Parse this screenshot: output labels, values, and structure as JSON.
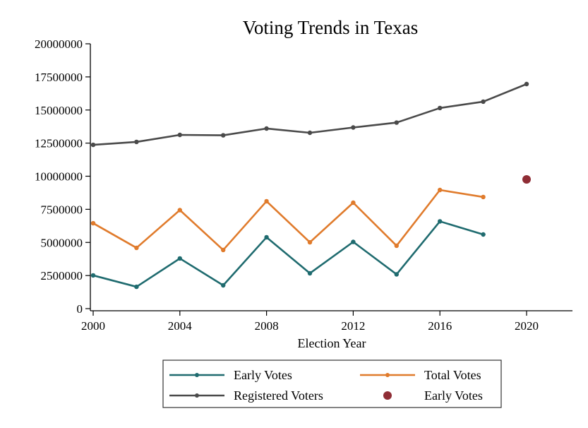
{
  "chart_data": {
    "type": "line",
    "title": "Voting Trends in Texas",
    "xlabel": "Election Year",
    "ylabel": "",
    "xlim": [
      2000,
      2022
    ],
    "ylim": [
      0,
      20000000
    ],
    "x_ticks": [
      2000,
      2004,
      2008,
      2012,
      2016,
      2020
    ],
    "x_tick_labels": [
      "2000",
      "2004",
      "2008",
      "2012",
      "2016",
      "2020"
    ],
    "y_ticks": [
      0,
      2500000,
      5000000,
      7500000,
      10000000,
      12500000,
      15000000,
      17500000,
      20000000
    ],
    "y_tick_labels": [
      "0",
      "2500000",
      "5000000",
      "7500000",
      "10000000",
      "12500000",
      "15000000",
      "17500000",
      "20000000"
    ],
    "grid": false,
    "legend_position": "bottom",
    "series": [
      {
        "name": "Early Votes",
        "kind": "line",
        "color": "#1f6b6f",
        "x": [
          2000,
          2002,
          2004,
          2006,
          2008,
          2010,
          2012,
          2014,
          2016,
          2018
        ],
        "values": [
          2510000,
          1650000,
          3790000,
          1760000,
          5390000,
          2670000,
          5040000,
          2590000,
          6590000,
          5600000
        ]
      },
      {
        "name": "Total Votes",
        "kind": "line",
        "color": "#e07b2c",
        "x": [
          2000,
          2002,
          2004,
          2006,
          2008,
          2010,
          2012,
          2014,
          2016,
          2018
        ],
        "values": [
          6450000,
          4590000,
          7440000,
          4430000,
          8110000,
          5010000,
          8000000,
          4750000,
          8960000,
          8430000
        ]
      },
      {
        "name": "Registered Voters",
        "kind": "line",
        "color": "#4a4a4a",
        "x": [
          2000,
          2002,
          2004,
          2006,
          2008,
          2010,
          2012,
          2014,
          2016,
          2018,
          2020
        ],
        "values": [
          12370000,
          12590000,
          13120000,
          13090000,
          13600000,
          13280000,
          13680000,
          14050000,
          15150000,
          15630000,
          16960000
        ]
      },
      {
        "name": "Early Votes",
        "kind": "scatter",
        "color": "#8f2d35",
        "x": [
          2020
        ],
        "values": [
          9760000
        ]
      }
    ]
  }
}
